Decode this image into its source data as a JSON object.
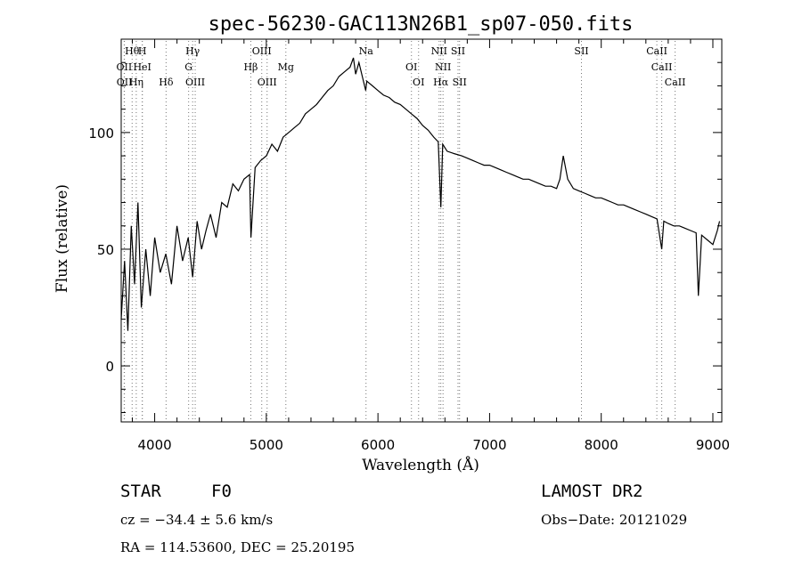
{
  "chart_data": {
    "type": "line",
    "title": "spec-56230-GAC113N26B1_sp07-050.fits",
    "xlabel": "Wavelength (Å)",
    "ylabel": "Flux (relative)",
    "xlim": [
      3700,
      9080
    ],
    "ylim": [
      -24,
      140
    ],
    "x_ticks": [
      4000,
      5000,
      6000,
      7000,
      8000,
      9000
    ],
    "x_tick_labels": [
      "4000",
      "5000",
      "6000",
      "7000",
      "8000",
      "9000"
    ],
    "y_ticks": [
      0,
      50,
      100
    ],
    "y_tick_labels": [
      "0",
      "50",
      "100"
    ],
    "grid": false,
    "series": [
      {
        "color": "#000000",
        "x": [
          3700,
          3730,
          3760,
          3790,
          3820,
          3850,
          3880,
          3920,
          3960,
          4000,
          4050,
          4100,
          4150,
          4200,
          4250,
          4300,
          4340,
          4380,
          4420,
          4460,
          4500,
          4550,
          4600,
          4650,
          4700,
          4750,
          4800,
          4850,
          4862,
          4900,
          4950,
          5000,
          5050,
          5100,
          5150,
          5200,
          5250,
          5300,
          5350,
          5400,
          5450,
          5500,
          5550,
          5600,
          5650,
          5700,
          5750,
          5780,
          5800,
          5830,
          5860,
          5890,
          5900,
          5950,
          6000,
          6050,
          6100,
          6150,
          6200,
          6250,
          6300,
          6350,
          6400,
          6450,
          6500,
          6540,
          6563,
          6580,
          6620,
          6680,
          6750,
          6800,
          6850,
          6900,
          6950,
          7000,
          7050,
          7100,
          7150,
          7200,
          7250,
          7300,
          7350,
          7400,
          7450,
          7500,
          7550,
          7600,
          7630,
          7660,
          7700,
          7750,
          7800,
          7850,
          7900,
          7950,
          8000,
          8050,
          8100,
          8150,
          8200,
          8250,
          8300,
          8350,
          8400,
          8450,
          8500,
          8542,
          8560,
          8600,
          8650,
          8700,
          8750,
          8800,
          8850,
          8870,
          8900,
          8950,
          9000,
          9040,
          9060
        ],
        "y": [
          20,
          45,
          15,
          60,
          35,
          70,
          25,
          50,
          30,
          55,
          40,
          48,
          35,
          60,
          45,
          55,
          38,
          62,
          50,
          58,
          65,
          55,
          70,
          68,
          78,
          75,
          80,
          82,
          55,
          85,
          88,
          90,
          95,
          92,
          98,
          100,
          102,
          104,
          108,
          110,
          112,
          115,
          118,
          120,
          124,
          126,
          128,
          132,
          125,
          130,
          124,
          118,
          122,
          120,
          118,
          116,
          115,
          113,
          112,
          110,
          108,
          106,
          103,
          101,
          98,
          96,
          68,
          95,
          92,
          91,
          90,
          89,
          88,
          87,
          86,
          86,
          85,
          84,
          83,
          82,
          81,
          80,
          80,
          79,
          78,
          77,
          77,
          76,
          80,
          90,
          80,
          76,
          75,
          74,
          73,
          72,
          72,
          71,
          70,
          69,
          69,
          68,
          67,
          66,
          65,
          64,
          63,
          50,
          62,
          61,
          60,
          60,
          59,
          58,
          57,
          30,
          56,
          54,
          52,
          58,
          62
        ]
      }
    ],
    "line_ids": [
      {
        "label": "Hθ",
        "x": 3798,
        "row": 1
      },
      {
        "label": "H",
        "x": 3889,
        "row": 1
      },
      {
        "label": "Hγ",
        "x": 4340,
        "row": 1
      },
      {
        "label": "OIII",
        "x": 4959,
        "row": 1
      },
      {
        "label": "Na",
        "x": 5893,
        "row": 1
      },
      {
        "label": "NII",
        "x": 6548,
        "row": 1
      },
      {
        "label": "SII",
        "x": 6717,
        "row": 1
      },
      {
        "label": "SII",
        "x": 7823,
        "row": 1
      },
      {
        "label": "CaII",
        "x": 8498,
        "row": 1
      },
      {
        "label": "OII",
        "x": 3727,
        "row": 2
      },
      {
        "label": "HeI",
        "x": 3889,
        "row": 2
      },
      {
        "label": "G",
        "x": 4304,
        "row": 2
      },
      {
        "label": "Hβ",
        "x": 4861,
        "row": 2
      },
      {
        "label": "Mg",
        "x": 5175,
        "row": 2
      },
      {
        "label": "OI",
        "x": 6300,
        "row": 2
      },
      {
        "label": "NII",
        "x": 6583,
        "row": 2
      },
      {
        "label": "CaII",
        "x": 8542,
        "row": 2
      },
      {
        "label": "OII",
        "x": 3729,
        "row": 3
      },
      {
        "label": "Hη",
        "x": 3835,
        "row": 3
      },
      {
        "label": "Hδ",
        "x": 4102,
        "row": 3
      },
      {
        "label": "OIII",
        "x": 4363,
        "row": 3
      },
      {
        "label": "OIII",
        "x": 5007,
        "row": 3
      },
      {
        "label": "OI",
        "x": 6364,
        "row": 3
      },
      {
        "label": "Hα",
        "x": 6563,
        "row": 3
      },
      {
        "label": "SII",
        "x": 6731,
        "row": 3
      },
      {
        "label": "CaII",
        "x": 8662,
        "row": 3
      }
    ]
  },
  "info": {
    "object_type": "STAR",
    "subclass": "F0",
    "survey": "LAMOST DR2",
    "redshift": "cz = −34.4 ± 5.6 km/s",
    "obs_date": "Obs−Date: 20121029",
    "coordinates": "RA = 114.53600, DEC =  25.20195"
  }
}
